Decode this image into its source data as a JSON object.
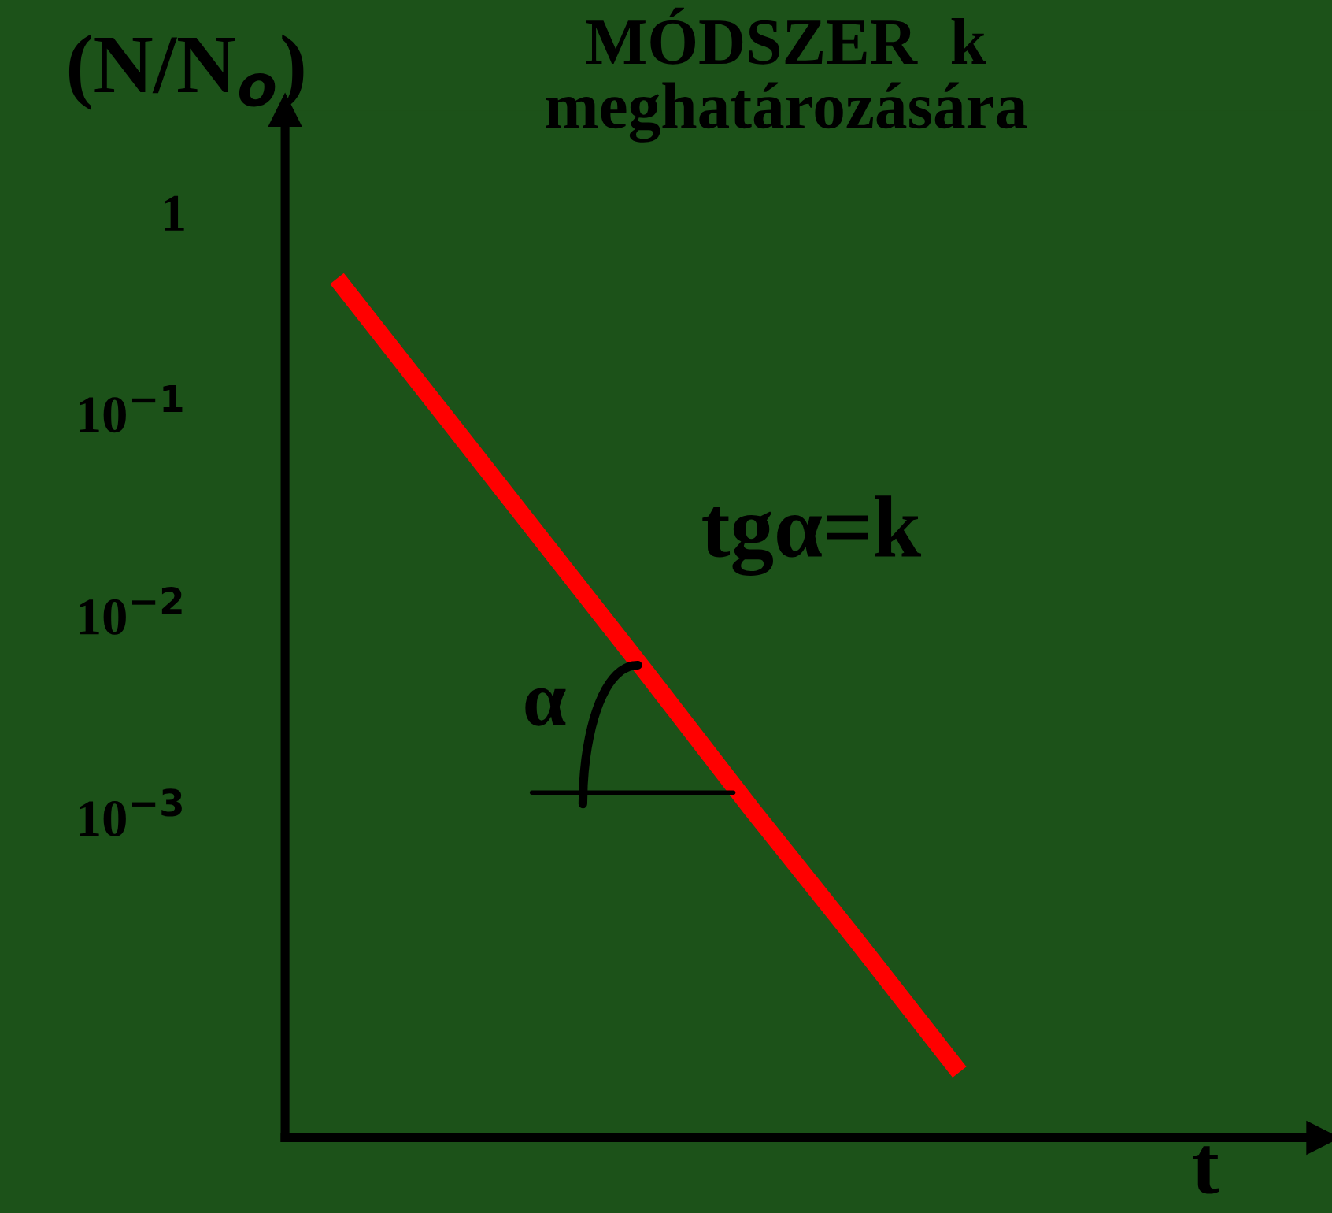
{
  "chart_data": {
    "type": "line",
    "title": "MÓDSZER  k\nmeghatározására",
    "ylabel": "(N/N$_{o}$)",
    "xlabel": "t",
    "categories": [
      null,
      null,
      null,
      null,
      null,
      null,
      null,
      null,
      null,
      null
    ],
    "series": [
      {
        "color": "#ff0000",
        "values": [
          0.47,
          0.104,
          0.023,
          0.0051,
          0.0011,
          0.00025,
          5.5e-05,
          null,
          null,
          null
        ]
      }
    ],
    "log": "y",
    "ylim": [
      2.6e-05,
      3.2
    ],
    "yticks": [
      {
        "value": 1,
        "label": "1"
      },
      {
        "value": 0.1,
        "label": "10$^{−1}$"
      },
      {
        "value": 0.01,
        "label": "10$^{−2}$"
      },
      {
        "value": 0.001,
        "label": "10$^{−3}$"
      }
    ],
    "tick_labels": "y",
    "grid": false,
    "legend": false,
    "marker": "none",
    "line_style": "solid",
    "annotations": [
      "tgα=k",
      "α"
    ]
  }
}
